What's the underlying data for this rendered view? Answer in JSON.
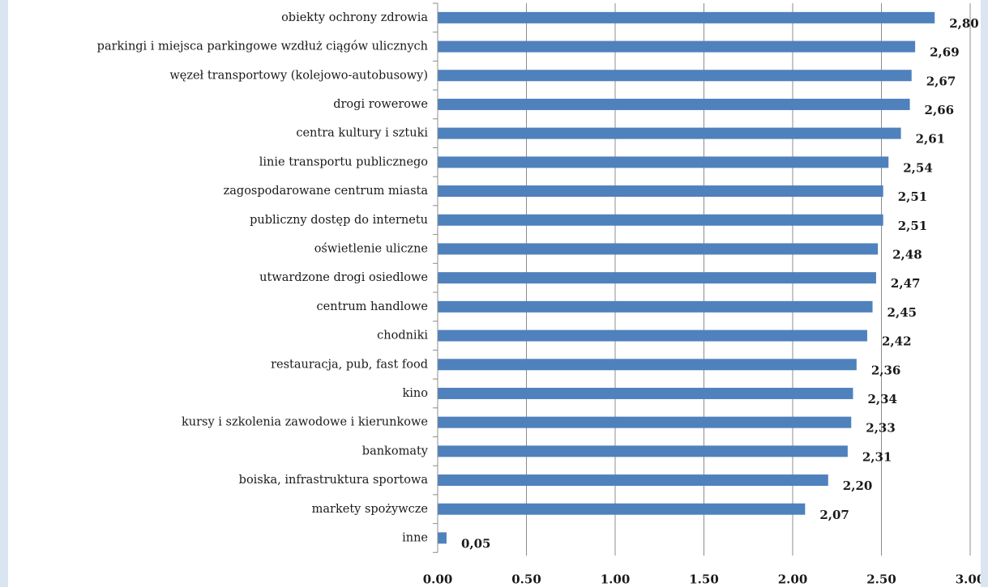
{
  "chart_data": {
    "type": "bar",
    "orientation": "horizontal",
    "categories": [
      "obiekty ochrony zdrowia",
      "parkingi i miejsca parkingowe wzdłuż ciągów ulicznych",
      "węzeł transportowy (kolejowo-autobusowy)",
      "drogi rowerowe",
      "centra kultury i sztuki",
      "linie transportu publicznego",
      "zagospodarowane centrum miasta",
      "publiczny dostęp do internetu",
      "oświetlenie uliczne",
      "utwardzone drogi osiedlowe",
      "centrum handlowe",
      "chodniki",
      "restauracja, pub, fast food",
      "kino",
      "kursy i szkolenia zawodowe i kierunkowe",
      "bankomaty",
      "boiska, infrastruktura sportowa",
      "markety spożywcze",
      "inne"
    ],
    "values": [
      2.8,
      2.69,
      2.67,
      2.66,
      2.61,
      2.54,
      2.51,
      2.51,
      2.48,
      2.47,
      2.45,
      2.42,
      2.36,
      2.34,
      2.33,
      2.31,
      2.2,
      2.07,
      0.05
    ],
    "value_labels": [
      "2,80",
      "2,69",
      "2,67",
      "2,66",
      "2,61",
      "2,54",
      "2,51",
      "2,51",
      "2,48",
      "2,47",
      "2,45",
      "2,42",
      "2,36",
      "2,34",
      "2,33",
      "2,31",
      "2,20",
      "2,07",
      "0,05"
    ],
    "xticks": [
      "0.00",
      "0.50",
      "1.00",
      "1.50",
      "2.00",
      "2.50",
      "3.00"
    ],
    "xlim": [
      0,
      3
    ],
    "grid": true,
    "title": "",
    "xlabel": "",
    "ylabel": "",
    "colors": {
      "bar": "#4f81bd",
      "grid": "#8c8c8c",
      "axis": "#8c8c8c",
      "background": "#ffffff",
      "frame": "#dbe5f1"
    }
  }
}
